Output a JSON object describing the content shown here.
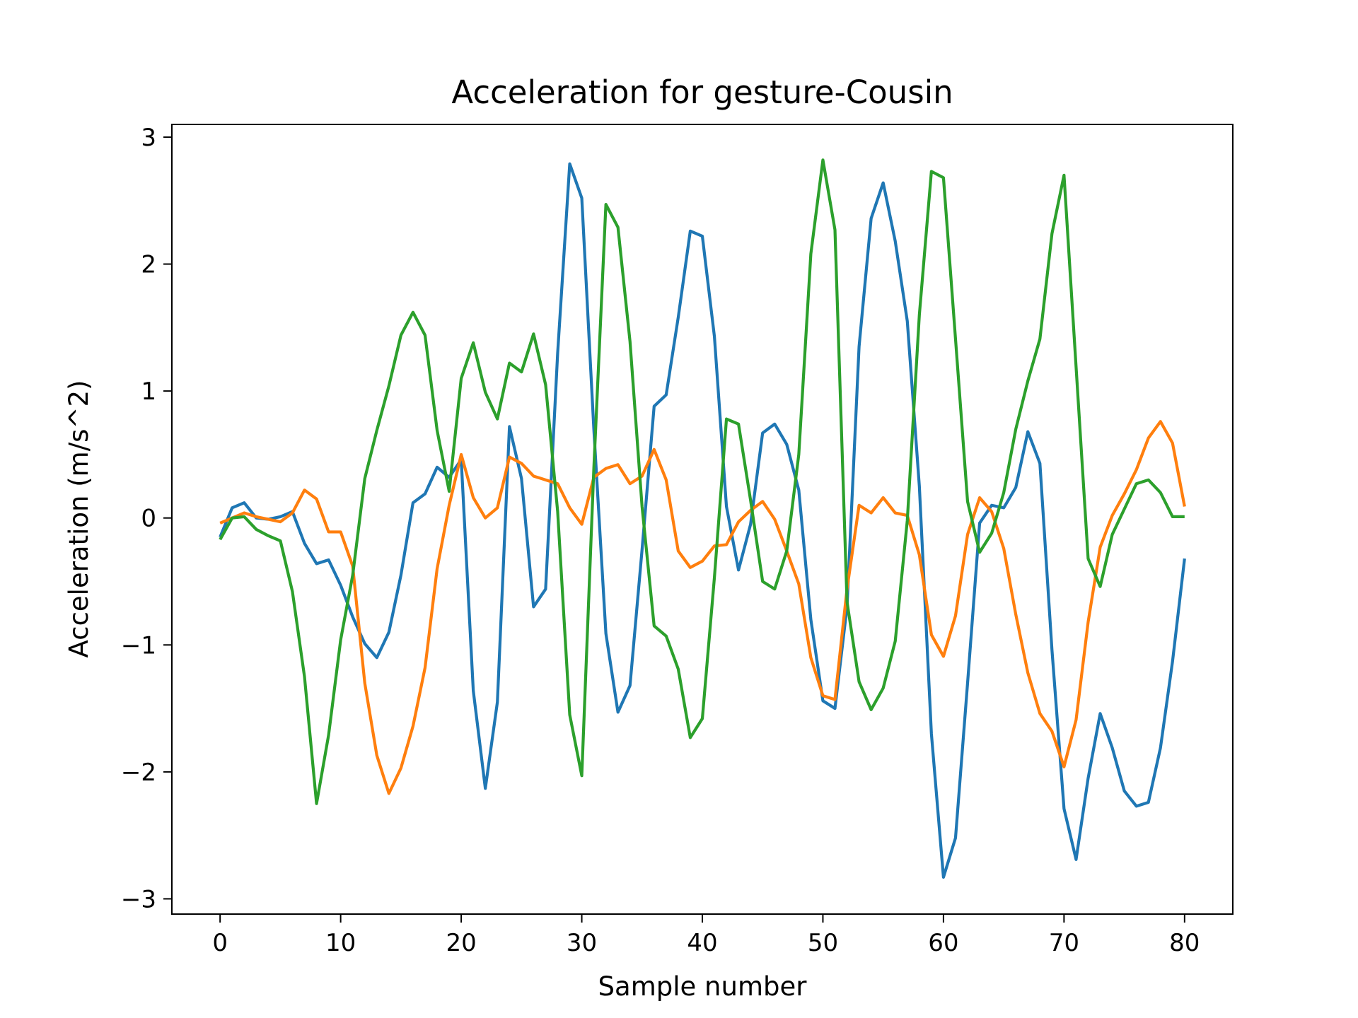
{
  "chart_data": {
    "type": "line",
    "title": "Acceleration for gesture-Cousin",
    "xlabel": "Sample number",
    "ylabel": "Acceleration (m/s^2)",
    "xlim": [
      -4,
      84
    ],
    "ylim": [
      -3.12,
      3.1
    ],
    "xticks": [
      0,
      10,
      20,
      30,
      40,
      50,
      60,
      70,
      80
    ],
    "xtick_labels": [
      "0",
      "10",
      "20",
      "30",
      "40",
      "50",
      "60",
      "70",
      "80"
    ],
    "yticks": [
      -3,
      -2,
      -1,
      0,
      1,
      2,
      3
    ],
    "ytick_labels": [
      "−3",
      "−2",
      "−1",
      "0",
      "1",
      "2",
      "3"
    ],
    "grid": false,
    "series": [
      {
        "color": "#1f77b4",
        "values": [
          -0.15,
          0.08,
          0.12,
          0.0,
          -0.01,
          0.01,
          0.05,
          -0.2,
          -0.36,
          -0.33,
          -0.53,
          -0.78,
          -0.99,
          -1.1,
          -0.9,
          -0.45,
          0.12,
          0.19,
          0.4,
          0.32,
          0.46,
          -1.36,
          -2.13,
          -1.45,
          0.72,
          0.31,
          -0.7,
          -0.56,
          1.3,
          2.79,
          2.52,
          0.7,
          -0.91,
          -1.53,
          -1.32,
          -0.25,
          0.88,
          0.97,
          1.58,
          2.26,
          2.22,
          1.43,
          0.09,
          -0.41,
          -0.05,
          0.67,
          0.74,
          0.58,
          0.22,
          -0.8,
          -1.44,
          -1.5,
          -0.7,
          1.35,
          2.36,
          2.64,
          2.18,
          1.55,
          0.25,
          -1.7,
          -2.83,
          -2.52,
          -1.3,
          -0.04,
          0.1,
          0.08,
          0.24,
          0.68,
          0.43,
          -1.04,
          -2.29,
          -2.69,
          -2.05,
          -1.54,
          -1.81,
          -2.15,
          -2.27,
          -2.24,
          -1.81,
          -1.13,
          -0.32
        ]
      },
      {
        "color": "#ff7f0e",
        "values": [
          -0.04,
          0.0,
          0.04,
          0.01,
          -0.01,
          -0.03,
          0.04,
          0.22,
          0.15,
          -0.11,
          -0.11,
          -0.38,
          -1.3,
          -1.87,
          -2.17,
          -1.97,
          -1.64,
          -1.18,
          -0.4,
          0.1,
          0.5,
          0.16,
          0.0,
          0.08,
          0.48,
          0.43,
          0.33,
          0.3,
          0.27,
          0.08,
          -0.05,
          0.32,
          0.39,
          0.42,
          0.27,
          0.33,
          0.54,
          0.3,
          -0.26,
          -0.39,
          -0.34,
          -0.22,
          -0.21,
          -0.03,
          0.06,
          0.13,
          -0.01,
          -0.26,
          -0.52,
          -1.1,
          -1.4,
          -1.43,
          -0.56,
          0.1,
          0.04,
          0.16,
          0.04,
          0.02,
          -0.29,
          -0.92,
          -1.09,
          -0.77,
          -0.13,
          0.16,
          0.05,
          -0.24,
          -0.76,
          -1.22,
          -1.54,
          -1.68,
          -1.96,
          -1.59,
          -0.82,
          -0.23,
          0.02,
          0.19,
          0.38,
          0.63,
          0.76,
          0.59,
          0.09
        ]
      },
      {
        "color": "#2ca02c",
        "values": [
          -0.17,
          0.0,
          0.01,
          -0.09,
          -0.14,
          -0.18,
          -0.58,
          -1.25,
          -2.25,
          -1.71,
          -0.96,
          -0.45,
          0.31,
          0.69,
          1.04,
          1.44,
          1.62,
          1.44,
          0.69,
          0.21,
          1.1,
          1.38,
          0.99,
          0.78,
          1.22,
          1.15,
          1.45,
          1.05,
          0.05,
          -1.55,
          -2.03,
          0.39,
          2.47,
          2.29,
          1.39,
          0.09,
          -0.85,
          -0.93,
          -1.19,
          -1.73,
          -1.58,
          -0.47,
          0.78,
          0.74,
          0.14,
          -0.5,
          -0.56,
          -0.26,
          0.5,
          2.08,
          2.82,
          2.27,
          -0.66,
          -1.29,
          -1.51,
          -1.34,
          -0.97,
          -0.02,
          1.6,
          2.73,
          2.68,
          1.41,
          0.13,
          -0.27,
          -0.12,
          0.2,
          0.7,
          1.08,
          1.41,
          2.24,
          2.7,
          1.19,
          -0.32,
          -0.54,
          -0.13,
          0.07,
          0.27,
          0.3,
          0.2,
          0.01,
          0.01
        ]
      }
    ]
  }
}
